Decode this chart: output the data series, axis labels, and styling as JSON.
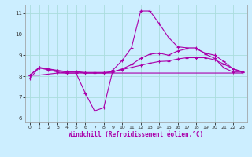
{
  "title": "",
  "xlabel": "Windchill (Refroidissement éolien,°C)",
  "background_color": "#cceeff",
  "grid_color": "#aadddd",
  "line_color": "#aa00aa",
  "xlim": [
    -0.5,
    23.5
  ],
  "ylim": [
    5.8,
    11.4
  ],
  "xticks": [
    0,
    1,
    2,
    3,
    4,
    5,
    6,
    7,
    8,
    9,
    10,
    11,
    12,
    13,
    14,
    15,
    16,
    17,
    18,
    19,
    20,
    21,
    22,
    23
  ],
  "yticks": [
    6,
    7,
    8,
    9,
    10,
    11
  ],
  "line1_x": [
    0,
    1,
    2,
    3,
    4,
    5,
    6,
    7,
    8,
    9,
    10,
    11,
    12,
    13,
    14,
    15,
    16,
    17,
    18,
    19,
    20,
    21,
    22,
    23
  ],
  "line1_y": [
    7.9,
    8.4,
    8.3,
    8.2,
    8.15,
    8.15,
    7.2,
    6.35,
    6.5,
    8.3,
    8.75,
    9.35,
    11.1,
    11.1,
    10.5,
    9.85,
    9.4,
    9.35,
    9.35,
    9.05,
    8.85,
    8.4,
    8.2,
    8.2
  ],
  "line2_x": [
    0,
    1,
    2,
    3,
    4,
    5,
    6,
    7,
    8,
    9,
    10,
    11,
    12,
    13,
    14,
    15,
    16,
    17,
    18,
    19,
    20,
    21,
    22,
    23
  ],
  "line2_y": [
    8.05,
    8.4,
    8.35,
    8.25,
    8.2,
    8.2,
    8.15,
    8.15,
    8.15,
    8.2,
    8.35,
    8.55,
    8.85,
    9.05,
    9.1,
    9.0,
    9.2,
    9.3,
    9.3,
    9.1,
    9.0,
    8.7,
    8.35,
    8.2
  ],
  "line3_x": [
    0,
    1,
    2,
    3,
    4,
    5,
    6,
    7,
    8,
    9,
    10,
    11,
    12,
    13,
    14,
    15,
    16,
    17,
    18,
    19,
    20,
    21,
    22,
    23
  ],
  "line3_y": [
    8.05,
    8.42,
    8.35,
    8.28,
    8.22,
    8.22,
    8.18,
    8.18,
    8.18,
    8.22,
    8.32,
    8.42,
    8.52,
    8.62,
    8.7,
    8.72,
    8.82,
    8.88,
    8.88,
    8.88,
    8.78,
    8.58,
    8.35,
    8.22
  ],
  "line4_x": [
    0,
    1,
    2,
    3,
    4,
    5,
    6,
    7,
    8,
    9,
    10,
    11,
    12,
    13,
    14,
    15,
    16,
    17,
    18,
    19,
    20,
    21,
    22,
    23
  ],
  "line4_y": [
    8.05,
    8.05,
    8.1,
    8.15,
    8.15,
    8.15,
    8.15,
    8.15,
    8.15,
    8.15,
    8.15,
    8.15,
    8.15,
    8.15,
    8.15,
    8.15,
    8.15,
    8.15,
    8.15,
    8.15,
    8.15,
    8.15,
    8.15,
    8.15
  ]
}
